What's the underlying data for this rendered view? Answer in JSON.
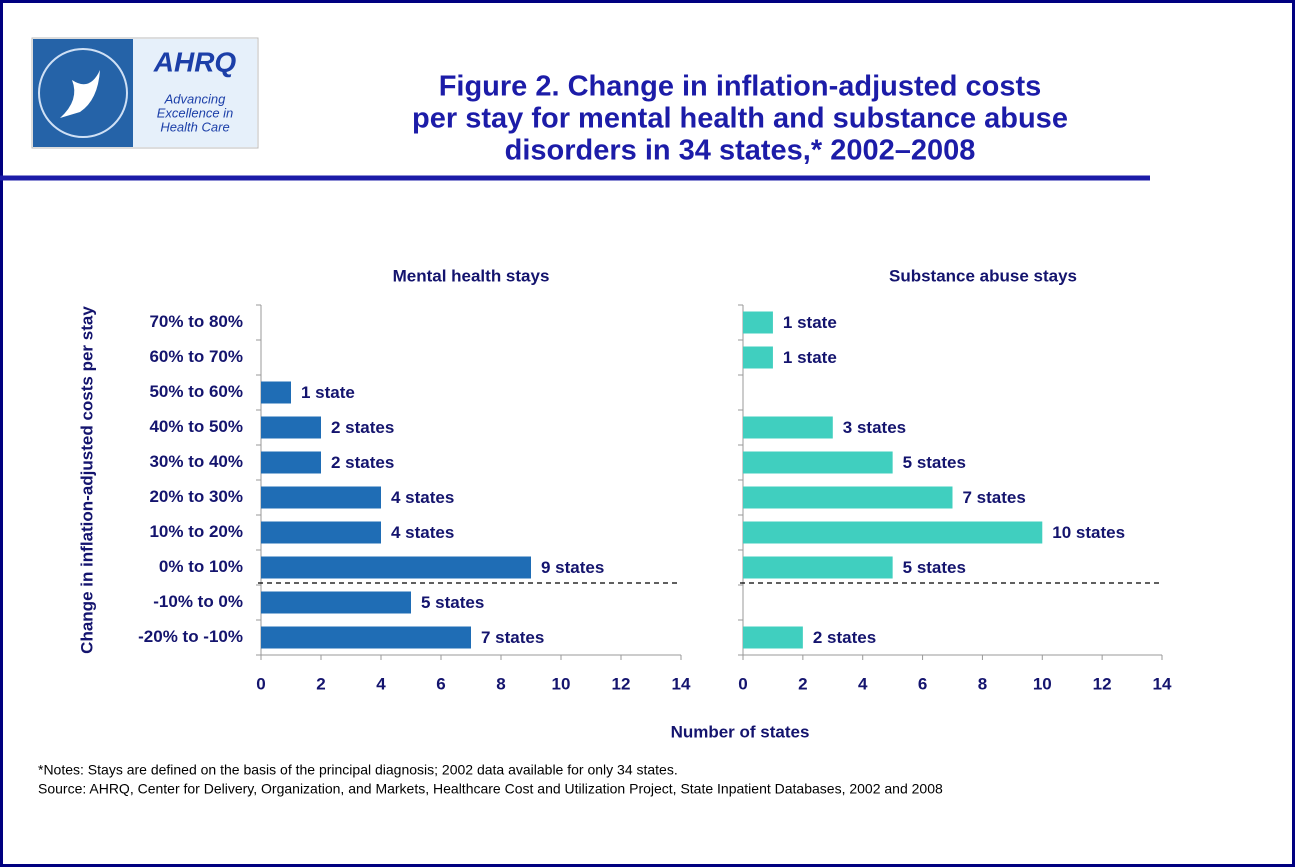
{
  "logo": {
    "name": "AHRQ",
    "tagline": [
      "Advancing",
      "Excellence in",
      "Health Care"
    ]
  },
  "title": [
    "Figure 2. Change in inflation-adjusted costs",
    "per stay for mental health and substance abuse",
    "disorders in 34 states,* 2002–2008"
  ],
  "ylabel": "Change in inflation-adjusted costs per stay",
  "xlabel": "Number of states",
  "chart_data": [
    {
      "type": "bar",
      "orientation": "horizontal",
      "title": "Mental health stays",
      "categories": [
        "70% to 80%",
        "60% to 70%",
        "50% to 60%",
        "40% to 50%",
        "30% to 40%",
        "20% to 30%",
        "10% to 20%",
        "0% to 10%",
        "-10% to 0%",
        "-20% to -10%"
      ],
      "values": [
        null,
        null,
        1,
        2,
        2,
        4,
        4,
        9,
        5,
        7
      ],
      "value_labels": [
        null,
        null,
        "1 state",
        "2 states",
        "2 states",
        "4 states",
        "4 states",
        "9 states",
        "5 states",
        "7 states"
      ],
      "color": "#1f6db5",
      "xlim": [
        0,
        14
      ],
      "xticks": [
        0,
        2,
        4,
        6,
        8,
        10,
        12,
        14
      ]
    },
    {
      "type": "bar",
      "orientation": "horizontal",
      "title": "Substance abuse stays",
      "values": [
        1,
        1,
        null,
        3,
        5,
        7,
        10,
        5,
        null,
        2
      ],
      "value_labels": [
        "1 state",
        "1 state",
        null,
        "3 states",
        "5 states",
        "7 states",
        "10 states",
        "5 states",
        null,
        "2 states"
      ],
      "color": "#40cfbf",
      "xlim": [
        0,
        14
      ],
      "xticks": [
        0,
        2,
        4,
        6,
        8,
        10,
        12,
        14
      ]
    }
  ],
  "notes": [
    "*Notes: Stays are defined on the basis of the principal diagnosis; 2002 data available for only 34 states.",
    "Source:  AHRQ, Center for Delivery, Organization, and Markets, Healthcare Cost and Utilization Project, State Inpatient Databases, 2002 and 2008"
  ]
}
